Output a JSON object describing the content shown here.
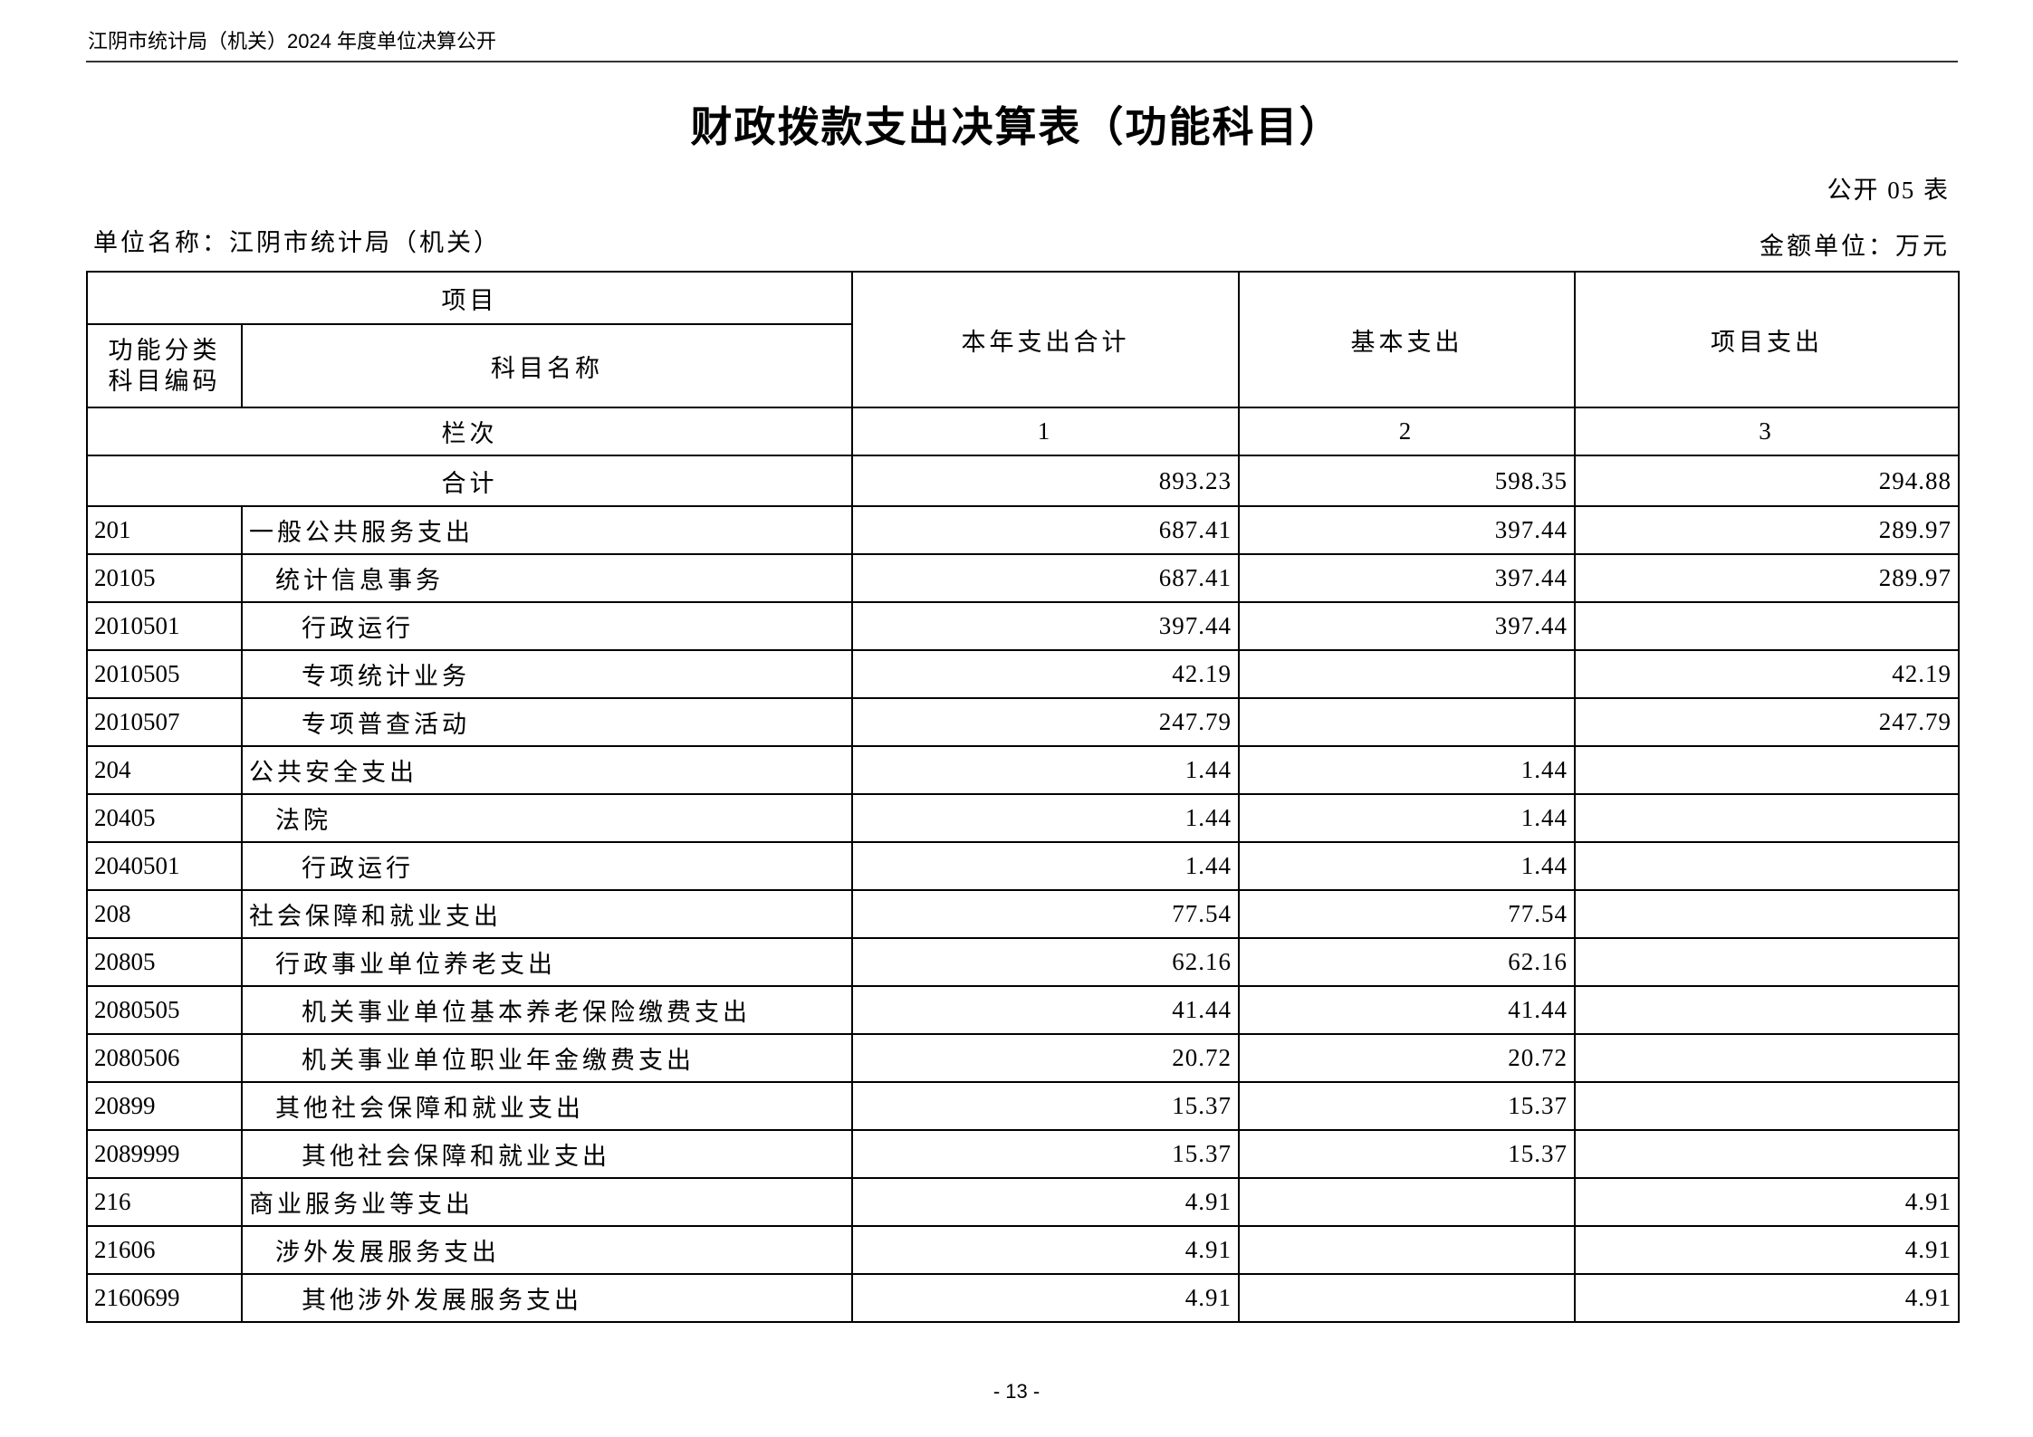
{
  "header": {
    "text": "江阴市统计局（机关）2024 年度单位决算公开"
  },
  "title": "财政拨款支出决算表（功能科目）",
  "form_number": "公开 05 表",
  "unit_name": "单位名称：江阴市统计局（机关）",
  "amount_unit": "金额单位：万元",
  "table": {
    "headers": {
      "item": "项目",
      "code": "功能分类科目编码",
      "code_line1": "功能分类",
      "code_line2": "科目编码",
      "name": "科目名称",
      "total": "本年支出合计",
      "basic": "基本支出",
      "project": "项目支出",
      "column_index_label": "栏次",
      "col1": "1",
      "col2": "2",
      "col3": "3"
    },
    "total_row": {
      "label": "合计",
      "total": "893.23",
      "basic": "598.35",
      "project": "294.88"
    },
    "rows": [
      {
        "code": "201",
        "name": "一般公共服务支出",
        "level": 1,
        "total": "687.41",
        "basic": "397.44",
        "project": "289.97"
      },
      {
        "code": "20105",
        "name": "统计信息事务",
        "level": 2,
        "total": "687.41",
        "basic": "397.44",
        "project": "289.97"
      },
      {
        "code": "2010501",
        "name": "行政运行",
        "level": 3,
        "total": "397.44",
        "basic": "397.44",
        "project": ""
      },
      {
        "code": "2010505",
        "name": "专项统计业务",
        "level": 3,
        "total": "42.19",
        "basic": "",
        "project": "42.19"
      },
      {
        "code": "2010507",
        "name": "专项普查活动",
        "level": 3,
        "total": "247.79",
        "basic": "",
        "project": "247.79"
      },
      {
        "code": "204",
        "name": "公共安全支出",
        "level": 1,
        "total": "1.44",
        "basic": "1.44",
        "project": ""
      },
      {
        "code": "20405",
        "name": "法院",
        "level": 2,
        "total": "1.44",
        "basic": "1.44",
        "project": ""
      },
      {
        "code": "2040501",
        "name": "行政运行",
        "level": 3,
        "total": "1.44",
        "basic": "1.44",
        "project": ""
      },
      {
        "code": "208",
        "name": "社会保障和就业支出",
        "level": 1,
        "total": "77.54",
        "basic": "77.54",
        "project": ""
      },
      {
        "code": "20805",
        "name": "行政事业单位养老支出",
        "level": 2,
        "total": "62.16",
        "basic": "62.16",
        "project": ""
      },
      {
        "code": "2080505",
        "name": "机关事业单位基本养老保险缴费支出",
        "level": 3,
        "total": "41.44",
        "basic": "41.44",
        "project": ""
      },
      {
        "code": "2080506",
        "name": "机关事业单位职业年金缴费支出",
        "level": 3,
        "total": "20.72",
        "basic": "20.72",
        "project": ""
      },
      {
        "code": "20899",
        "name": "其他社会保障和就业支出",
        "level": 2,
        "total": "15.37",
        "basic": "15.37",
        "project": ""
      },
      {
        "code": "2089999",
        "name": "其他社会保障和就业支出",
        "level": 3,
        "total": "15.37",
        "basic": "15.37",
        "project": ""
      },
      {
        "code": "216",
        "name": "商业服务业等支出",
        "level": 1,
        "total": "4.91",
        "basic": "",
        "project": "4.91"
      },
      {
        "code": "21606",
        "name": "涉外发展服务支出",
        "level": 2,
        "total": "4.91",
        "basic": "",
        "project": "4.91"
      },
      {
        "code": "2160699",
        "name": "其他涉外发展服务支出",
        "level": 3,
        "total": "4.91",
        "basic": "",
        "project": "4.91"
      }
    ]
  },
  "page_number": "- 13 -"
}
